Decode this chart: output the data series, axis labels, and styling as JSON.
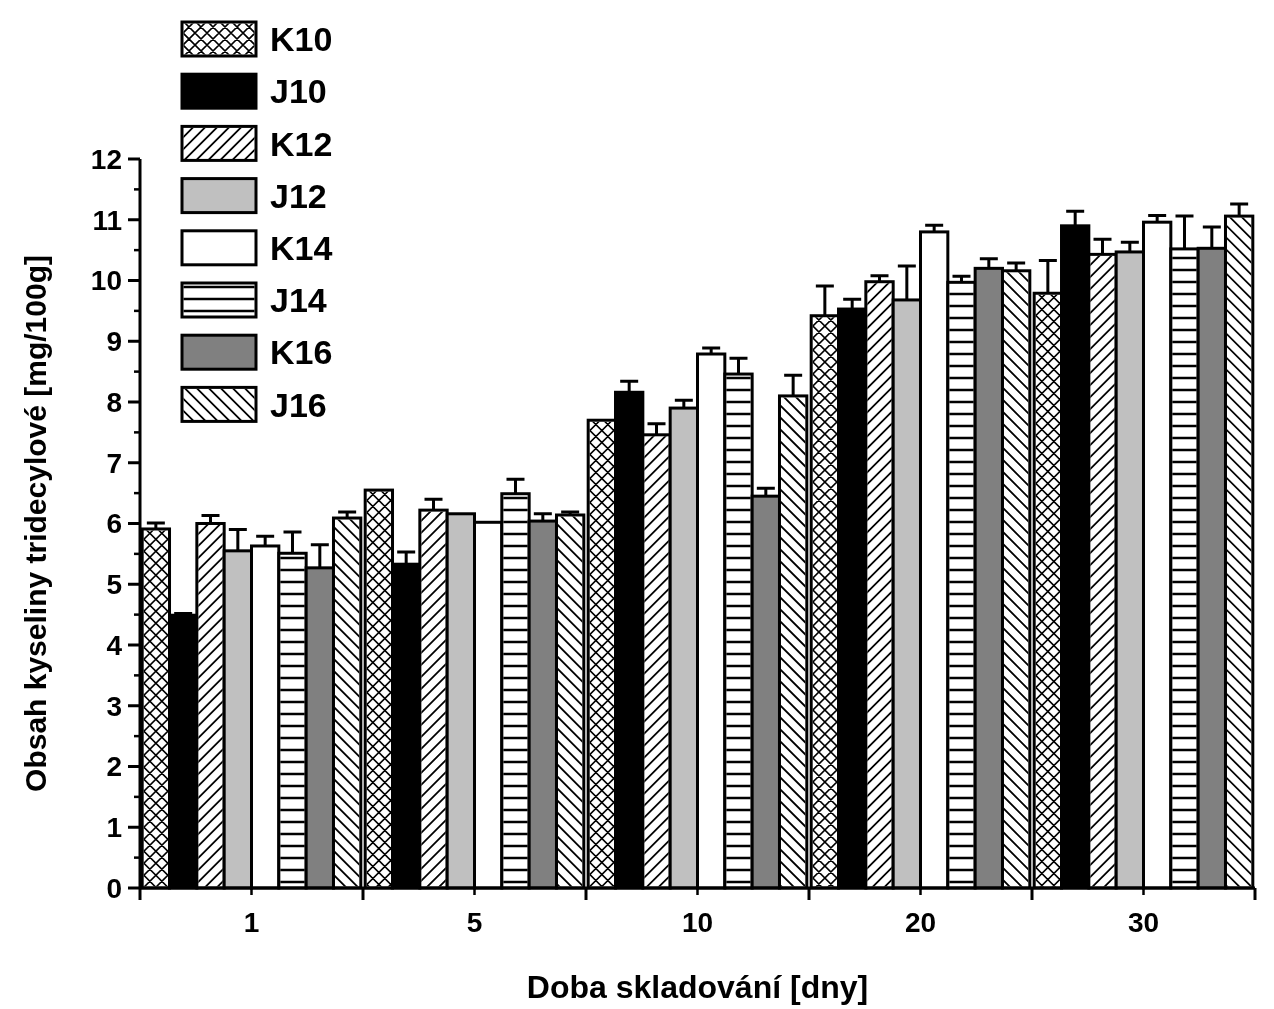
{
  "chart_data": {
    "type": "bar",
    "xlabel": "Doba skladování [dny]",
    "ylabel": "Obsah kyseliny tridecylové [mg/100g]",
    "categories": [
      "1",
      "5",
      "10",
      "20",
      "30"
    ],
    "ylim": [
      0,
      12
    ],
    "yticks": [
      0,
      1,
      2,
      3,
      4,
      5,
      6,
      7,
      8,
      9,
      10,
      11,
      12
    ],
    "legend": "top left",
    "grid": false,
    "series": [
      {
        "name": "K10",
        "color": "#ffffff",
        "values": [
          5.91,
          6.55,
          7.7,
          9.42,
          9.79
        ],
        "errors": [
          0.1,
          null,
          null,
          0.49,
          0.54
        ]
      },
      {
        "name": "J10",
        "color": "#000000",
        "values": [
          4.49,
          5.33,
          8.16,
          9.53,
          10.9
        ],
        "errors": [
          0.03,
          0.2,
          0.18,
          0.16,
          0.24
        ]
      },
      {
        "name": "K12",
        "color": "#ffffff",
        "values": [
          6.0,
          6.22,
          7.46,
          9.98,
          10.43
        ],
        "errors": [
          0.13,
          0.18,
          0.18,
          0.1,
          0.25
        ]
      },
      {
        "name": "J12",
        "color": "#c0c0c0",
        "values": [
          5.55,
          6.16,
          7.9,
          9.68,
          10.47
        ],
        "errors": [
          0.35,
          null,
          0.13,
          0.56,
          0.16
        ]
      },
      {
        "name": "K14",
        "color": "#ffffff",
        "values": [
          5.63,
          6.02,
          8.79,
          10.8,
          10.96
        ],
        "errors": [
          0.16,
          null,
          0.1,
          0.11,
          0.11
        ]
      },
      {
        "name": "J14",
        "color": "#ffffff",
        "values": [
          5.51,
          6.49,
          8.46,
          9.97,
          10.52
        ],
        "errors": [
          0.35,
          0.24,
          0.26,
          0.1,
          0.54
        ]
      },
      {
        "name": "K16",
        "color": "#808080",
        "values": [
          5.27,
          6.04,
          6.45,
          10.2,
          10.53
        ],
        "errors": [
          0.38,
          0.12,
          0.13,
          0.16,
          0.35
        ]
      },
      {
        "name": "J16",
        "color": "#ffffff",
        "values": [
          6.09,
          6.14,
          8.1,
          10.16,
          11.06
        ],
        "errors": [
          0.1,
          0.05,
          0.34,
          0.13,
          0.2
        ]
      }
    ]
  }
}
